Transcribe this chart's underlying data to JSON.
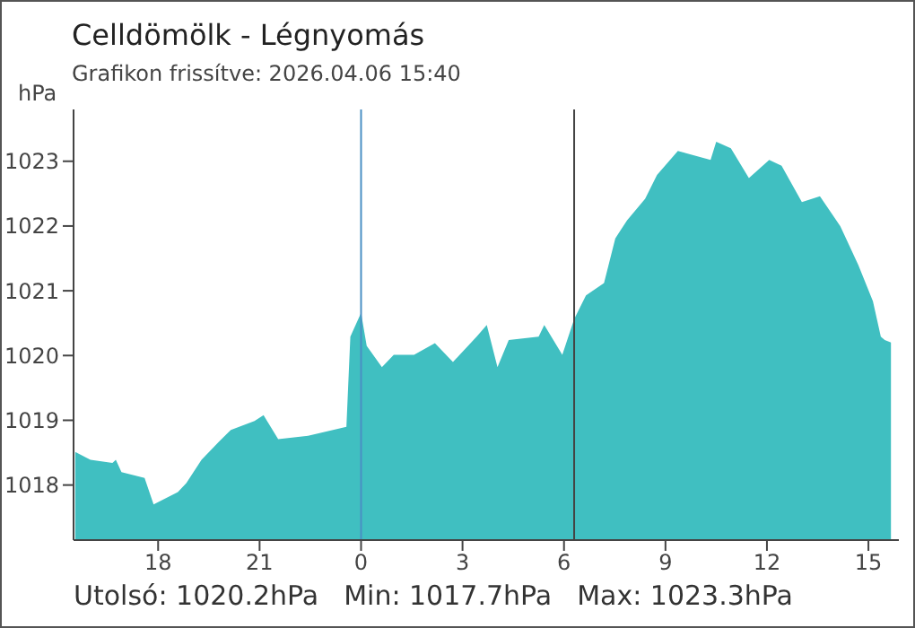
{
  "chart_data": {
    "type": "area",
    "title": "Celldömölk - Légnyomás",
    "subtitle": "Grafikon frissítve: 2026.04.06 15:40",
    "ylabel": "hPa",
    "annotations": [
      "Utolsó: 1020.2hPa",
      "Min: 1017.7hPa",
      "Max: 1023.3hPa"
    ],
    "x": [
      "2026-04-05T15:33",
      "2026-04-05T16:00",
      "2026-04-05T16:39",
      "2026-04-05T16:45",
      "2026-04-05T16:55",
      "2026-04-05T17:36",
      "2026-04-05T17:52",
      "2026-04-05T18:35",
      "2026-04-05T18:50",
      "2026-04-05T19:17",
      "2026-04-05T19:48",
      "2026-04-05T20:09",
      "2026-04-05T20:51",
      "2026-04-05T21:07",
      "2026-04-05T21:33",
      "2026-04-05T22:26",
      "2026-04-05T23:34",
      "2026-04-05T23:41",
      "2026-04-06T00:00",
      "2026-04-06T00:10",
      "2026-04-06T00:37",
      "2026-04-06T00:58",
      "2026-04-06T01:34",
      "2026-04-06T02:11",
      "2026-04-06T02:43",
      "2026-04-06T03:25",
      "2026-04-06T03:43",
      "2026-04-06T04:02",
      "2026-04-06T04:22",
      "2026-04-06T05:15",
      "2026-04-06T05:25",
      "2026-04-06T05:57",
      "2026-04-06T06:18",
      "2026-04-06T06:39",
      "2026-04-06T07:11",
      "2026-04-06T07:31",
      "2026-04-06T07:52",
      "2026-04-06T08:24",
      "2026-04-06T08:45",
      "2026-04-06T09:22",
      "2026-04-06T10:20",
      "2026-04-06T10:30",
      "2026-04-06T10:56",
      "2026-04-06T11:28",
      "2026-04-06T12:04",
      "2026-04-06T12:26",
      "2026-04-06T13:02",
      "2026-04-06T13:34",
      "2026-04-06T14:10",
      "2026-04-06T14:42",
      "2026-04-06T15:08",
      "2026-04-06T15:22",
      "2026-04-06T15:29",
      "2026-04-06T15:40"
    ],
    "series": [
      {
        "color": "#40bfc1",
        "values": [
          1018.51,
          1018.39,
          1018.34,
          1018.39,
          1018.2,
          1018.11,
          1017.7,
          1017.89,
          1018.03,
          1018.39,
          1018.67,
          1018.85,
          1018.99,
          1019.08,
          1018.71,
          1018.76,
          1018.9,
          1020.29,
          1020.66,
          1020.15,
          1019.82,
          1020.01,
          1020.01,
          1020.19,
          1019.9,
          1020.29,
          1020.47,
          1019.82,
          1020.24,
          1020.29,
          1020.47,
          1020.01,
          1020.56,
          1020.93,
          1021.12,
          1021.81,
          1022.09,
          1022.42,
          1022.79,
          1023.16,
          1023.02,
          1023.3,
          1023.2,
          1022.74,
          1023.02,
          1022.93,
          1022.37,
          1022.46,
          1022.0,
          1021.4,
          1020.84,
          1020.29,
          1020.24,
          1020.2
        ]
      }
    ],
    "xlim": [
      "2026-04-05T15:30",
      "2026-04-06T15:54"
    ],
    "xticks": [
      {
        "value": "2026-04-05T18:00",
        "label": "18"
      },
      {
        "value": "2026-04-05T21:00",
        "label": "21"
      },
      {
        "value": "2026-04-06T00:00",
        "label": "0"
      },
      {
        "value": "2026-04-06T03:00",
        "label": "3"
      },
      {
        "value": "2026-04-06T06:00",
        "label": "6"
      },
      {
        "value": "2026-04-06T09:00",
        "label": "9"
      },
      {
        "value": "2026-04-06T12:00",
        "label": "12"
      },
      {
        "value": "2026-04-06T15:00",
        "label": "15"
      }
    ],
    "ylim": [
      1017.15,
      1023.8
    ],
    "yticks": [
      1018,
      1019,
      1020,
      1021,
      1022,
      1023
    ],
    "ref_lines": [
      {
        "axis": "x",
        "value": "2026-04-06T00:00",
        "color": "#4a8fc4"
      },
      {
        "axis": "x",
        "value": "2026-04-06T06:18",
        "color": "#444444"
      }
    ],
    "grid": false,
    "legend": false
  }
}
